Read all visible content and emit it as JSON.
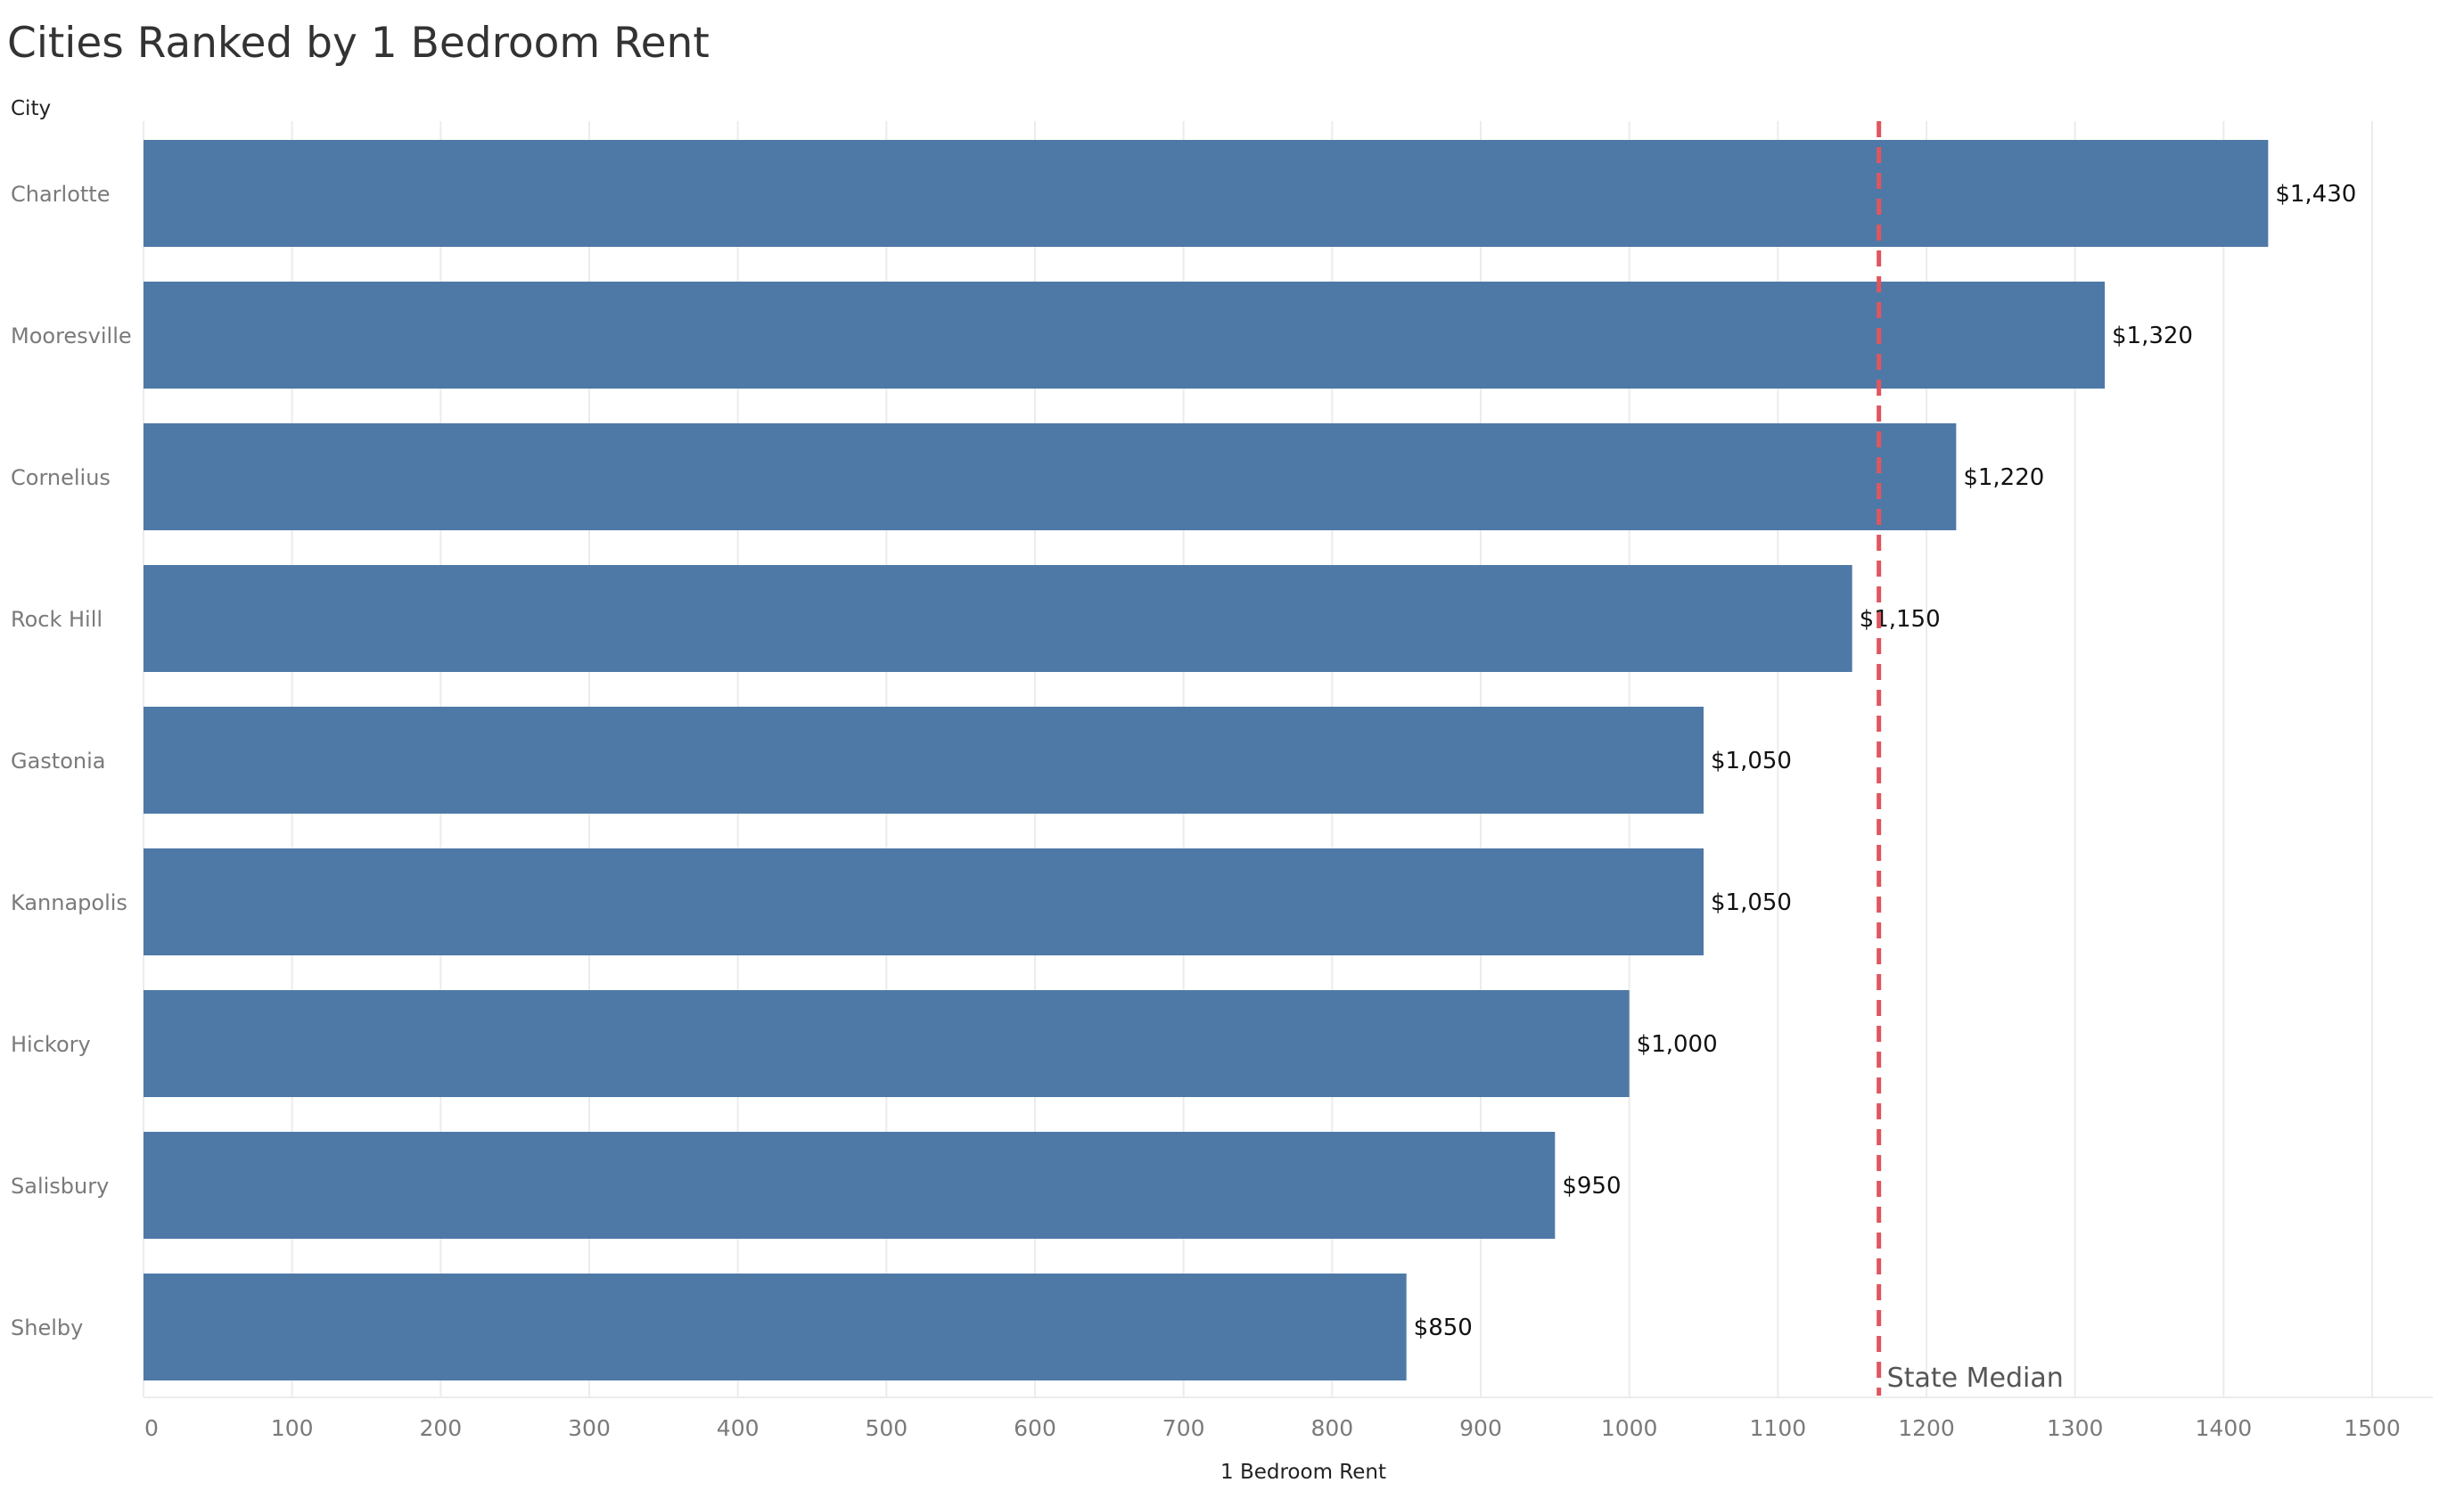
{
  "chart_data": {
    "type": "bar",
    "orientation": "horizontal",
    "title": "Cities Ranked by 1 Bedroom Rent",
    "category_axis_label": "City",
    "xlabel": "1 Bedroom Rent",
    "categories": [
      "Charlotte",
      "Mooresville",
      "Cornelius",
      "Rock Hill",
      "Gastonia",
      "Kannapolis",
      "Hickory",
      "Salisbury",
      "Shelby"
    ],
    "values": [
      1430,
      1320,
      1220,
      1150,
      1050,
      1050,
      1000,
      950,
      850
    ],
    "data_labels": [
      "$1,430",
      "$1,320",
      "$1,220",
      "$1,150",
      "$1,050",
      "$1,050",
      "$1,000",
      "$950",
      "$850"
    ],
    "xlim": [
      0,
      1500
    ],
    "x_ticks": [
      0,
      100,
      200,
      300,
      400,
      500,
      600,
      700,
      800,
      900,
      1000,
      1100,
      1200,
      1300,
      1400,
      1500
    ],
    "grid": "vertical",
    "reference_line": {
      "label": "State Median",
      "value": 1168,
      "style": "dashed",
      "color": "#e0555e"
    },
    "colors": {
      "bar": "#4e79a7",
      "grid": "#ececec"
    }
  }
}
